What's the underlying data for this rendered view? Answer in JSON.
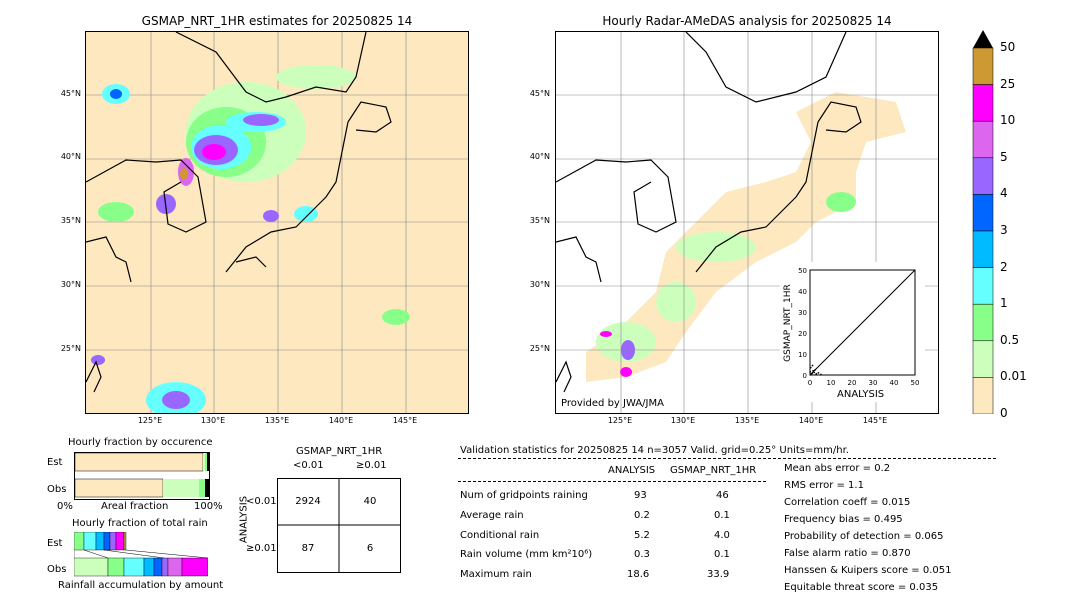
{
  "left_map": {
    "title": "GSMAP_NRT_1HR estimates for 20250825 14",
    "lat_labels": [
      "45°N",
      "40°N",
      "35°N",
      "30°N",
      "25°N"
    ],
    "lon_labels": [
      "125°E",
      "130°E",
      "135°E",
      "140°E",
      "145°E"
    ]
  },
  "right_map": {
    "title": "Hourly Radar-AMeDAS analysis for 20250825 14",
    "lat_labels": [
      "45°N",
      "40°N",
      "35°N",
      "30°N",
      "25°N"
    ],
    "lon_labels": [
      "125°E",
      "130°E",
      "135°E",
      "140°E",
      "145°E"
    ],
    "credit": "Provided by JWA/JMA"
  },
  "colorbar": {
    "labels": [
      "50",
      "25",
      "10",
      "5",
      "4",
      "3",
      "2",
      "1",
      "0.5",
      "0.01",
      "0"
    ],
    "colors": [
      "#cc9933",
      "#ff00ff",
      "#dd66ee",
      "#9966ff",
      "#0066ff",
      "#00bbff",
      "#66ffff",
      "#88ff88",
      "#ccffbb",
      "#fde8c0"
    ]
  },
  "chart_data": [
    {
      "type": "scatter",
      "title": "",
      "xlabel": "ANALYSIS",
      "ylabel": "GSMAP_NRT_1HR",
      "xlim": [
        0,
        50
      ],
      "ylim": [
        0,
        50
      ],
      "xticks": [
        "0",
        "10",
        "20",
        "30",
        "40",
        "50"
      ],
      "yticks": [
        "0",
        "10",
        "20",
        "30",
        "40",
        "50"
      ],
      "points": [
        [
          0.2,
          0.1
        ],
        [
          0.5,
          0.3
        ],
        [
          1.0,
          0.8
        ],
        [
          1.5,
          2.0
        ],
        [
          2.0,
          1.2
        ],
        [
          3.0,
          0.5
        ],
        [
          0.3,
          3.5
        ],
        [
          1.2,
          4.5
        ],
        [
          5.2,
          0.2
        ],
        [
          0.1,
          1.5
        ],
        [
          2.5,
          2.5
        ],
        [
          4.0,
          1.0
        ]
      ]
    },
    {
      "type": "bar",
      "title": "Hourly fraction by occurence",
      "categories": [
        "Est",
        "Obs"
      ],
      "xlabel": "Areal fraction",
      "xticks": [
        "0%",
        "100%"
      ]
    },
    {
      "type": "bar",
      "title": "Hourly fraction of total rain",
      "categories": [
        "Est",
        "Obs"
      ],
      "xlabel": "Rainfall accumulation by amount"
    }
  ],
  "contingency": {
    "col_title": "GSMAP_NRT_1HR",
    "col_headers": [
      "<0.01",
      "≥0.01"
    ],
    "row_title": "ANALYSIS",
    "row_headers": [
      "<0.01",
      "≥0.01"
    ],
    "cells": [
      "2924",
      "40",
      "87",
      "6"
    ]
  },
  "stats": {
    "header": "Validation statistics for 20250825 14  n=3057 Valid. grid=0.25° Units=mm/hr.",
    "col_analysis": "ANALYSIS",
    "col_gsmap": "GSMAP_NRT_1HR",
    "rows": [
      {
        "label": "Num of gridpoints raining",
        "a": "93",
        "g": "46"
      },
      {
        "label": "Average rain",
        "a": "0.2",
        "g": "0.1"
      },
      {
        "label": "Conditional rain",
        "a": "5.2",
        "g": "4.0"
      },
      {
        "label": "Rain volume (mm km²10⁶)",
        "a": "0.3",
        "g": "0.1"
      },
      {
        "label": "Maximum rain",
        "a": "18.6",
        "g": "33.9"
      }
    ],
    "scores": [
      "Mean abs error =    0.2",
      "RMS error =    1.1",
      "Correlation coeff =  0.015",
      "Frequency bias =  0.495",
      "Probability of detection =  0.065",
      "False alarm ratio =  0.870",
      "Hanssen & Kuipers score =  0.051",
      "Equitable threat score =  0.035"
    ]
  }
}
